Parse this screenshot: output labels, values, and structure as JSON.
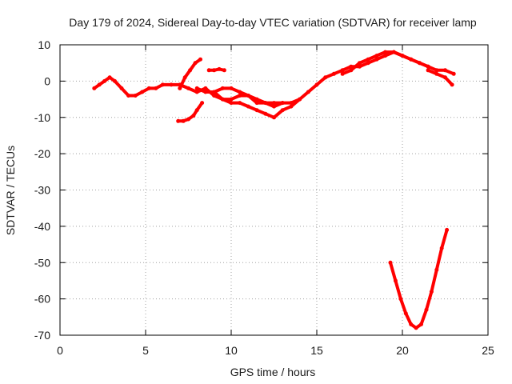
{
  "chart_data": {
    "type": "scatter",
    "title": "Day 179 of 2024, Sidereal Day-to-day VTEC variation (SDTVAR) for receiver lamp",
    "xlabel": "GPS time / hours",
    "ylabel": "SDTVAR / TECUs",
    "xlim": [
      0,
      25
    ],
    "ylim": [
      -70,
      10
    ],
    "xticks": [
      0,
      5,
      10,
      15,
      20,
      25
    ],
    "yticks": [
      -70,
      -60,
      -50,
      -40,
      -30,
      -20,
      -10,
      0,
      10
    ],
    "xtick_labels": [
      "0",
      "5",
      "10",
      "15",
      "20",
      "25"
    ],
    "ytick_labels": [
      "-70",
      "-60",
      "-50",
      "-40",
      "-30",
      "-20",
      "-10",
      "0",
      "10"
    ],
    "grid": true,
    "legend": "none",
    "series_color": "#ff0000",
    "series": [
      {
        "name": "trace-main",
        "x": [
          2.0,
          2.3,
          2.6,
          2.9,
          3.2,
          3.6,
          4.0,
          4.4,
          4.8,
          5.2,
          5.6,
          6.0,
          6.5,
          7.0,
          7.5,
          8.0,
          8.5,
          9.0,
          9.5,
          10.0,
          10.5,
          11.0,
          11.5,
          12.0,
          12.5,
          13.0,
          13.5,
          14.0,
          14.5,
          15.0,
          15.5,
          16.0,
          16.5,
          17.0,
          17.5,
          18.0,
          18.5,
          19.0,
          19.5,
          20.0,
          20.5,
          21.0,
          21.5,
          22.0,
          22.5,
          23.0
        ],
        "y": [
          -2,
          -1,
          0,
          1,
          0,
          -2,
          -4,
          -4,
          -3,
          -2,
          -2,
          -1,
          -1,
          -1,
          -2,
          -3,
          -2,
          -4,
          -5,
          -5,
          -4,
          -4,
          -5,
          -6,
          -6,
          -6,
          -6,
          -5,
          -3,
          -1,
          1,
          2,
          3,
          4,
          4,
          5,
          6,
          7,
          8,
          7,
          6,
          5,
          4,
          3,
          3,
          2
        ]
      },
      {
        "name": "trace-lower-branch",
        "x": [
          8.0,
          8.5,
          9.0,
          9.5,
          10.0,
          10.5,
          11.0,
          11.5,
          12.0,
          12.5,
          13.0,
          13.5,
          14.0
        ],
        "y": [
          -2,
          -3,
          -3,
          -5,
          -6,
          -6,
          -7,
          -8,
          -9,
          -10,
          -8,
          -7,
          -5
        ]
      },
      {
        "name": "trace-upper-branch",
        "x": [
          9.0,
          9.5,
          10.0,
          10.5,
          11.0,
          11.5,
          12.0,
          12.5,
          13.0
        ],
        "y": [
          -3,
          -2,
          -2,
          -3,
          -4,
          -6,
          -6,
          -7,
          -6
        ]
      },
      {
        "name": "spike-8h",
        "x": [
          7.0,
          7.3,
          7.6,
          7.9,
          8.2
        ],
        "y": [
          -2,
          1,
          3,
          5,
          6
        ]
      },
      {
        "name": "segment-7h-low",
        "x": [
          6.9,
          7.2,
          7.5,
          7.8,
          8.0,
          8.3
        ],
        "y": [
          -11,
          -11,
          -10.5,
          -9.5,
          -8,
          -6
        ]
      },
      {
        "name": "segment-9h",
        "x": [
          8.7,
          9.0,
          9.3,
          9.6
        ],
        "y": [
          3,
          3,
          3.3,
          3
        ]
      },
      {
        "name": "segment-19h-high",
        "x": [
          16.5,
          17.0,
          17.5,
          18.0,
          18.5,
          19.0,
          19.5,
          20.0,
          20.5,
          21.0,
          21.5
        ],
        "y": [
          2,
          3,
          5,
          6,
          7,
          8,
          8,
          7,
          6,
          5,
          4
        ]
      },
      {
        "name": "segment-22h",
        "x": [
          21.5,
          22.0,
          22.5,
          22.9
        ],
        "y": [
          3,
          2,
          1,
          -1
        ]
      },
      {
        "name": "dip-20-22h",
        "x": [
          19.3,
          19.6,
          19.9,
          20.2,
          20.5,
          20.8,
          21.1,
          21.4,
          21.7,
          22.0,
          22.3,
          22.6
        ],
        "y": [
          -50,
          -55,
          -60,
          -64,
          -67,
          -68,
          -67,
          -63,
          -58,
          -52,
          -46,
          -41
        ]
      }
    ]
  }
}
